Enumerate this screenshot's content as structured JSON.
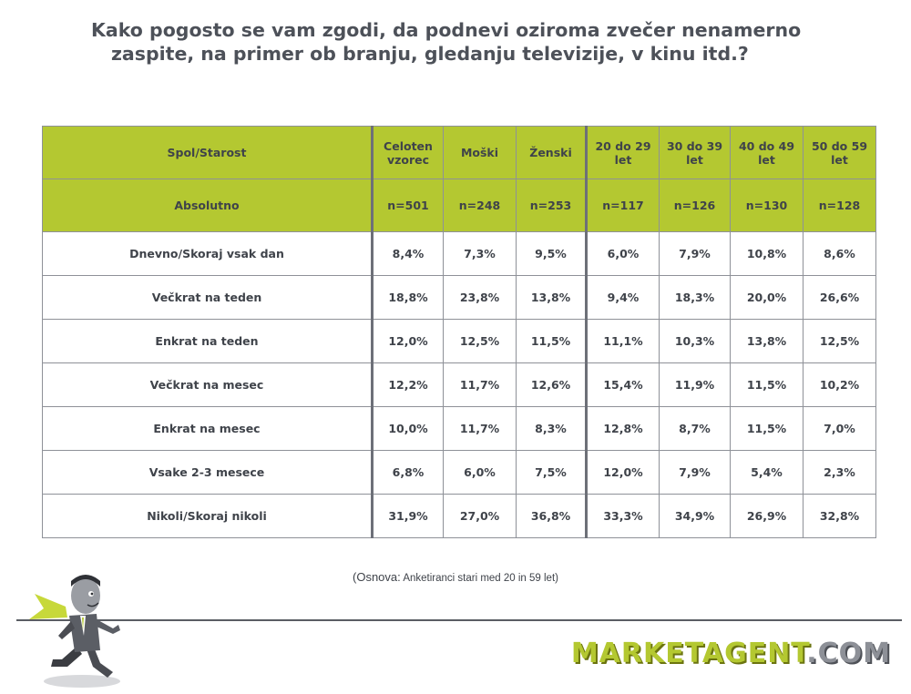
{
  "title": {
    "line1": "Kako pogosto se vam zgodi, da podnevi oziroma zvečer nenamerno",
    "line2": "zaspite, na primer ob branju, gledanju televizije, v kinu itd.?"
  },
  "table": {
    "header": {
      "label": "Spol/Starost",
      "columns": [
        "Celoten vzorec",
        "Moški",
        "Ženski",
        "20 do 29 let",
        "30 do 39 let",
        "40 do 49 let",
        "50 do 59 let"
      ]
    },
    "absolute": {
      "label": "Absolutno",
      "values": [
        "n=501",
        "n=248",
        "n=253",
        "n=117",
        "n=126",
        "n=130",
        "n=128"
      ]
    },
    "rows": [
      {
        "label": "Dnevno/Skoraj vsak dan",
        "values": [
          "8,4%",
          "7,3%",
          "9,5%",
          "6,0%",
          "7,9%",
          "10,8%",
          "8,6%"
        ]
      },
      {
        "label": "Večkrat na teden",
        "values": [
          "18,8%",
          "23,8%",
          "13,8%",
          "9,4%",
          "18,3%",
          "20,0%",
          "26,6%"
        ]
      },
      {
        "label": "Enkrat na teden",
        "values": [
          "12,0%",
          "12,5%",
          "11,5%",
          "11,1%",
          "10,3%",
          "13,8%",
          "12,5%"
        ]
      },
      {
        "label": "Večkrat na mesec",
        "values": [
          "12,2%",
          "11,7%",
          "12,6%",
          "15,4%",
          "11,9%",
          "11,5%",
          "10,2%"
        ]
      },
      {
        "label": "Enkrat na mesec",
        "values": [
          "10,0%",
          "11,7%",
          "8,3%",
          "12,8%",
          "8,7%",
          "11,5%",
          "7,0%"
        ]
      },
      {
        "label": "Vsake 2-3 mesece",
        "values": [
          "6,8%",
          "6,0%",
          "7,5%",
          "12,0%",
          "7,9%",
          "5,4%",
          "2,3%"
        ]
      },
      {
        "label": "Nikoli/Skoraj nikoli",
        "values": [
          "31,9%",
          "27,0%",
          "36,8%",
          "33,3%",
          "34,9%",
          "26,9%",
          "32,8%"
        ]
      }
    ]
  },
  "footnote": {
    "lead": "(Osnova:",
    "text": "Anketiranci stari med 20 in 59 let)"
  },
  "logo": {
    "brand": "MARKETAGENT",
    "tld": ".COM"
  },
  "colors": {
    "accent_green": "#b4c831",
    "text_gray": "#3f434a",
    "border_gray": "#8e9198"
  },
  "icons": {
    "mascot": "running-agent-mascot"
  }
}
